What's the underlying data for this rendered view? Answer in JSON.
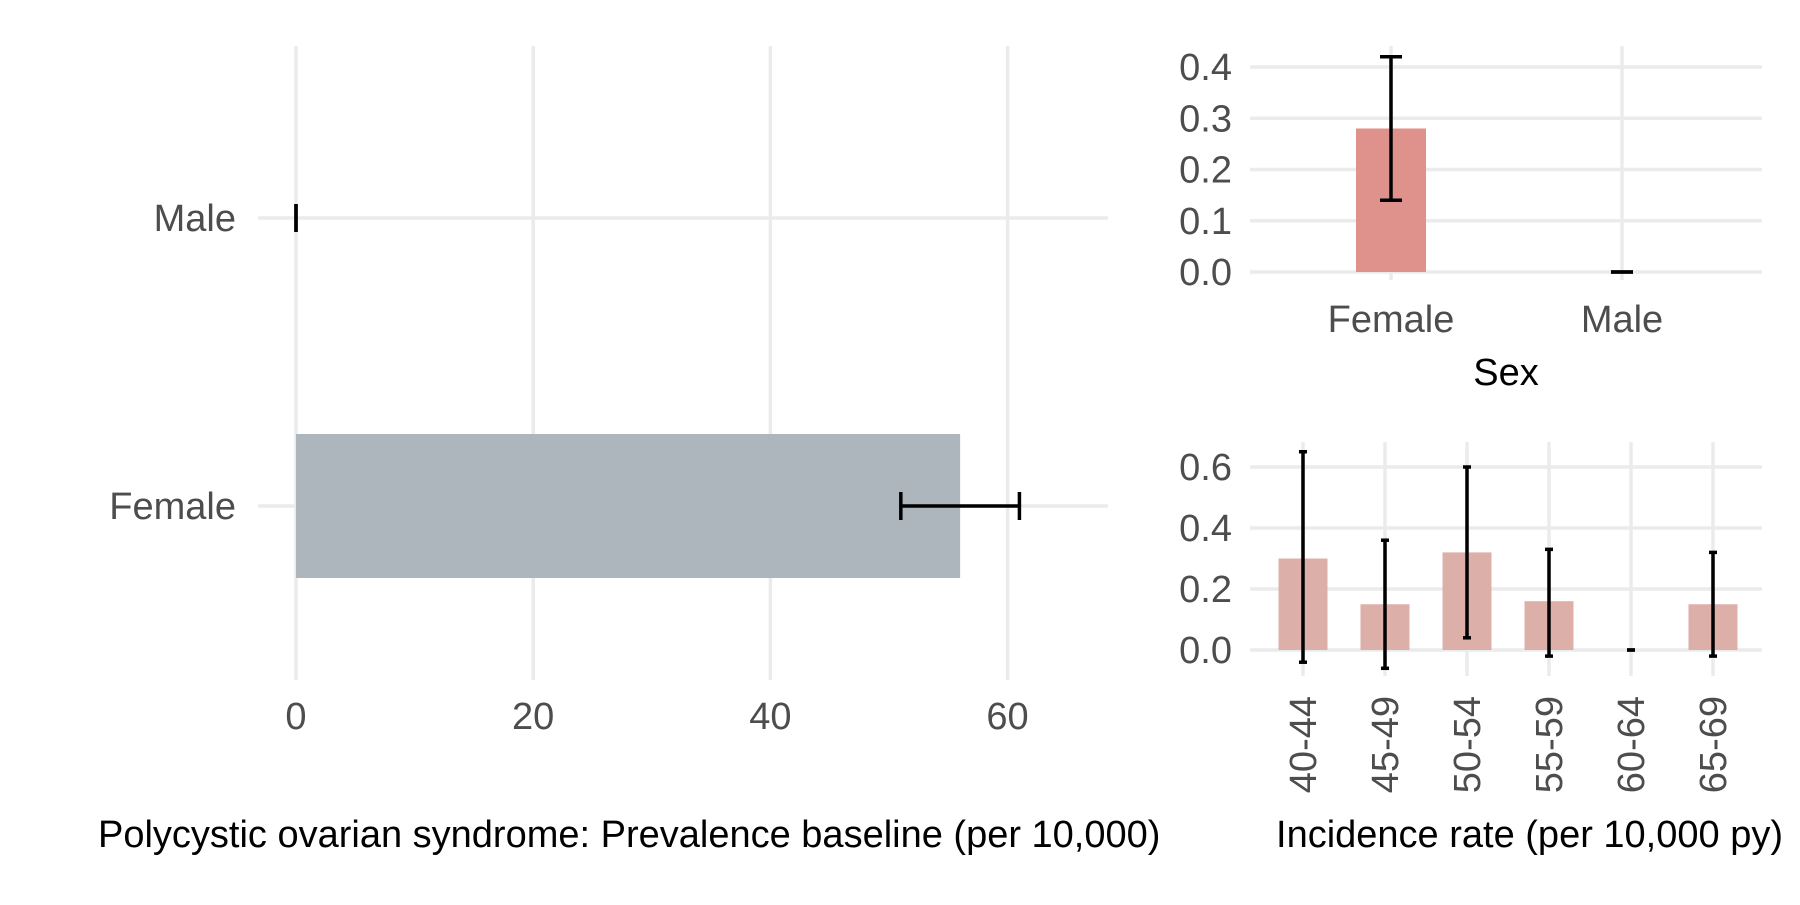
{
  "chart_data": [
    {
      "type": "bar",
      "orientation": "horizontal",
      "categories": [
        "Male",
        "Female"
      ],
      "values": [
        0,
        56
      ],
      "errors": [
        [
          0,
          0
        ],
        [
          51,
          61
        ]
      ],
      "xlim": [
        0,
        64
      ],
      "xticks": [
        "0",
        "20",
        "40",
        "60"
      ],
      "title": "Polycystic ovarian syndrome: Prevalence baseline (per 10,000)",
      "xlabel": "",
      "ylabel": "",
      "bar_color": "#adb5bd",
      "grid": true,
      "legend": "none"
    },
    {
      "type": "bar",
      "categories": [
        "Female",
        "Male"
      ],
      "values": [
        0.28,
        0
      ],
      "errors": [
        [
          0.14,
          0.42
        ],
        [
          0,
          0
        ]
      ],
      "ylim": [
        0,
        0.44
      ],
      "yticks": [
        "0.0",
        "0.1",
        "0.2",
        "0.3",
        "0.4"
      ],
      "xlabel": "Sex",
      "ylabel": "",
      "bar_color": "#de928b",
      "grid": true,
      "legend": "none"
    },
    {
      "type": "bar",
      "categories": [
        "40-44",
        "45-49",
        "50-54",
        "55-59",
        "60-64",
        "65-69"
      ],
      "values": [
        0.3,
        0.15,
        0.32,
        0.16,
        0,
        0.15
      ],
      "errors": [
        [
          -0.04,
          0.65
        ],
        [
          -0.06,
          0.36
        ],
        [
          0.04,
          0.6
        ],
        [
          -0.02,
          0.33
        ],
        [
          0,
          0
        ],
        [
          -0.02,
          0.32
        ]
      ],
      "ylim": [
        -0.07,
        0.68
      ],
      "yticks": [
        "0.0",
        "0.2",
        "0.4",
        "0.6"
      ],
      "title": "Incidence rate (per 10,000 py)",
      "xlabel": "",
      "ylabel": "",
      "bar_color": "#ddafa9",
      "grid": true,
      "legend": "none"
    }
  ]
}
